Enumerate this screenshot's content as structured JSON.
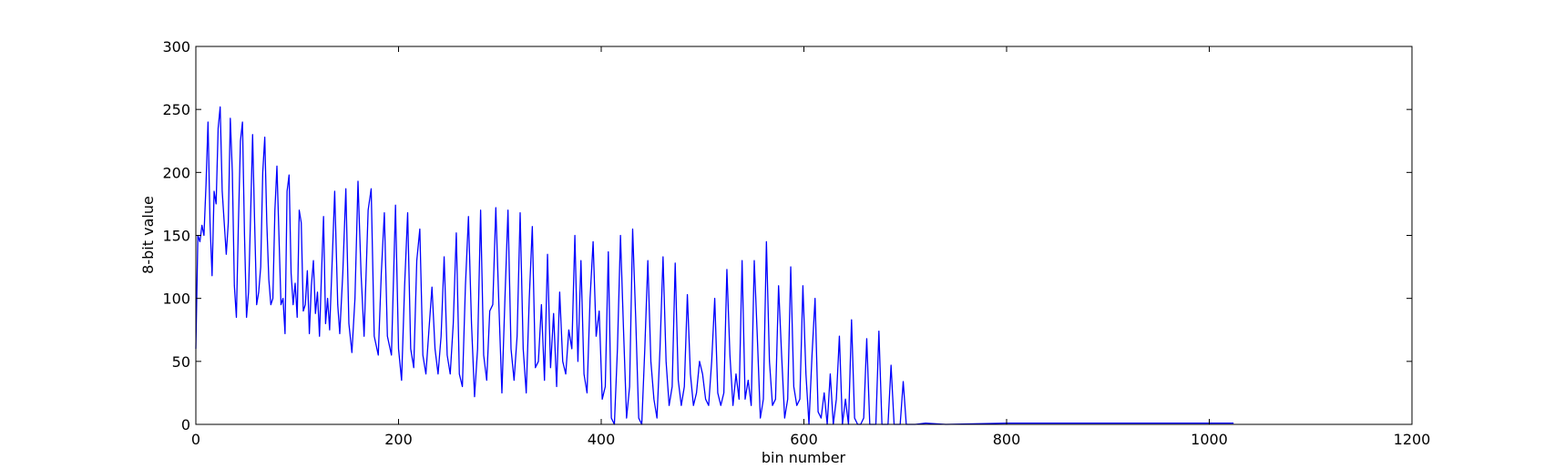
{
  "chart_data": {
    "type": "line",
    "title": "",
    "xlabel": "bin number",
    "ylabel": "8-bit value",
    "xlim": [
      0,
      1200
    ],
    "ylim": [
      0,
      300
    ],
    "x_ticks": [
      0,
      200,
      400,
      600,
      800,
      1000,
      1200
    ],
    "y_ticks": [
      0,
      50,
      100,
      150,
      200,
      250,
      300
    ],
    "grid": false,
    "line_color": "#0000ff",
    "series": [
      {
        "name": "",
        "points": [
          [
            0,
            60
          ],
          [
            2,
            150
          ],
          [
            4,
            145
          ],
          [
            6,
            158
          ],
          [
            8,
            150
          ],
          [
            10,
            190
          ],
          [
            12,
            240
          ],
          [
            14,
            160
          ],
          [
            16,
            118
          ],
          [
            18,
            185
          ],
          [
            20,
            175
          ],
          [
            22,
            235
          ],
          [
            24,
            252
          ],
          [
            26,
            185
          ],
          [
            28,
            160
          ],
          [
            30,
            135
          ],
          [
            32,
            160
          ],
          [
            34,
            243
          ],
          [
            36,
            200
          ],
          [
            38,
            110
          ],
          [
            40,
            85
          ],
          [
            42,
            160
          ],
          [
            44,
            225
          ],
          [
            46,
            240
          ],
          [
            48,
            150
          ],
          [
            50,
            85
          ],
          [
            52,
            105
          ],
          [
            54,
            165
          ],
          [
            56,
            230
          ],
          [
            58,
            160
          ],
          [
            60,
            95
          ],
          [
            62,
            105
          ],
          [
            64,
            125
          ],
          [
            66,
            200
          ],
          [
            68,
            228
          ],
          [
            70,
            160
          ],
          [
            72,
            115
          ],
          [
            74,
            95
          ],
          [
            76,
            100
          ],
          [
            78,
            170
          ],
          [
            80,
            205
          ],
          [
            82,
            150
          ],
          [
            84,
            95
          ],
          [
            86,
            100
          ],
          [
            88,
            72
          ],
          [
            90,
            185
          ],
          [
            92,
            198
          ],
          [
            94,
            120
          ],
          [
            96,
            95
          ],
          [
            98,
            112
          ],
          [
            100,
            85
          ],
          [
            102,
            170
          ],
          [
            104,
            160
          ],
          [
            106,
            90
          ],
          [
            108,
            95
          ],
          [
            110,
            122
          ],
          [
            112,
            72
          ],
          [
            114,
            110
          ],
          [
            116,
            130
          ],
          [
            118,
            88
          ],
          [
            120,
            105
          ],
          [
            122,
            70
          ],
          [
            124,
            120
          ],
          [
            126,
            165
          ],
          [
            128,
            80
          ],
          [
            130,
            100
          ],
          [
            132,
            75
          ],
          [
            135,
            140
          ],
          [
            137,
            185
          ],
          [
            140,
            95
          ],
          [
            142,
            72
          ],
          [
            145,
            120
          ],
          [
            148,
            187
          ],
          [
            151,
            80
          ],
          [
            154,
            57
          ],
          [
            157,
            100
          ],
          [
            160,
            193
          ],
          [
            163,
            120
          ],
          [
            166,
            70
          ],
          [
            170,
            170
          ],
          [
            173,
            187
          ],
          [
            176,
            70
          ],
          [
            180,
            55
          ],
          [
            183,
            120
          ],
          [
            186,
            168
          ],
          [
            189,
            70
          ],
          [
            193,
            55
          ],
          [
            197,
            174
          ],
          [
            200,
            60
          ],
          [
            203,
            35
          ],
          [
            206,
            110
          ],
          [
            209,
            168
          ],
          [
            212,
            60
          ],
          [
            215,
            45
          ],
          [
            218,
            130
          ],
          [
            221,
            155
          ],
          [
            224,
            55
          ],
          [
            227,
            40
          ],
          [
            230,
            75
          ],
          [
            233,
            109
          ],
          [
            236,
            60
          ],
          [
            239,
            40
          ],
          [
            242,
            70
          ],
          [
            245,
            133
          ],
          [
            248,
            55
          ],
          [
            251,
            40
          ],
          [
            254,
            80
          ],
          [
            257,
            152
          ],
          [
            260,
            40
          ],
          [
            263,
            30
          ],
          [
            266,
            110
          ],
          [
            269,
            165
          ],
          [
            272,
            80
          ],
          [
            275,
            22
          ],
          [
            278,
            60
          ],
          [
            281,
            170
          ],
          [
            284,
            55
          ],
          [
            287,
            35
          ],
          [
            290,
            90
          ],
          [
            293,
            95
          ],
          [
            296,
            172
          ],
          [
            299,
            95
          ],
          [
            302,
            25
          ],
          [
            305,
            100
          ],
          [
            308,
            170
          ],
          [
            311,
            60
          ],
          [
            314,
            35
          ],
          [
            317,
            70
          ],
          [
            320,
            168
          ],
          [
            323,
            60
          ],
          [
            326,
            25
          ],
          [
            329,
            100
          ],
          [
            332,
            157
          ],
          [
            335,
            45
          ],
          [
            338,
            50
          ],
          [
            341,
            95
          ],
          [
            344,
            35
          ],
          [
            347,
            135
          ],
          [
            350,
            45
          ],
          [
            353,
            88
          ],
          [
            356,
            30
          ],
          [
            359,
            105
          ],
          [
            362,
            50
          ],
          [
            365,
            40
          ],
          [
            368,
            75
          ],
          [
            371,
            60
          ],
          [
            374,
            150
          ],
          [
            377,
            50
          ],
          [
            380,
            130
          ],
          [
            383,
            40
          ],
          [
            386,
            25
          ],
          [
            389,
            100
          ],
          [
            392,
            145
          ],
          [
            395,
            70
          ],
          [
            398,
            90
          ],
          [
            401,
            20
          ],
          [
            404,
            30
          ],
          [
            407,
            137
          ],
          [
            410,
            5
          ],
          [
            413,
            0
          ],
          [
            416,
            60
          ],
          [
            419,
            150
          ],
          [
            422,
            75
          ],
          [
            425,
            5
          ],
          [
            428,
            30
          ],
          [
            431,
            155
          ],
          [
            434,
            85
          ],
          [
            437,
            5
          ],
          [
            440,
            0
          ],
          [
            443,
            60
          ],
          [
            446,
            130
          ],
          [
            449,
            50
          ],
          [
            452,
            20
          ],
          [
            455,
            5
          ],
          [
            458,
            60
          ],
          [
            461,
            133
          ],
          [
            464,
            50
          ],
          [
            467,
            15
          ],
          [
            470,
            30
          ],
          [
            473,
            128
          ],
          [
            476,
            35
          ],
          [
            479,
            15
          ],
          [
            482,
            30
          ],
          [
            485,
            103
          ],
          [
            488,
            40
          ],
          [
            491,
            15
          ],
          [
            494,
            25
          ],
          [
            497,
            50
          ],
          [
            500,
            40
          ],
          [
            503,
            20
          ],
          [
            506,
            15
          ],
          [
            509,
            50
          ],
          [
            512,
            100
          ],
          [
            515,
            25
          ],
          [
            518,
            15
          ],
          [
            521,
            25
          ],
          [
            524,
            123
          ],
          [
            527,
            55
          ],
          [
            530,
            15
          ],
          [
            533,
            40
          ],
          [
            536,
            20
          ],
          [
            539,
            130
          ],
          [
            542,
            20
          ],
          [
            545,
            35
          ],
          [
            548,
            15
          ],
          [
            551,
            130
          ],
          [
            554,
            70
          ],
          [
            557,
            5
          ],
          [
            560,
            20
          ],
          [
            563,
            145
          ],
          [
            566,
            50
          ],
          [
            569,
            15
          ],
          [
            572,
            20
          ],
          [
            575,
            110
          ],
          [
            578,
            55
          ],
          [
            581,
            5
          ],
          [
            584,
            20
          ],
          [
            587,
            125
          ],
          [
            590,
            30
          ],
          [
            593,
            15
          ],
          [
            596,
            20
          ],
          [
            599,
            110
          ],
          [
            602,
            40
          ],
          [
            605,
            0
          ],
          [
            608,
            55
          ],
          [
            611,
            100
          ],
          [
            614,
            10
          ],
          [
            617,
            5
          ],
          [
            620,
            25
          ],
          [
            623,
            0
          ],
          [
            626,
            40
          ],
          [
            629,
            0
          ],
          [
            632,
            20
          ],
          [
            635,
            70
          ],
          [
            638,
            0
          ],
          [
            641,
            20
          ],
          [
            644,
            0
          ],
          [
            647,
            83
          ],
          [
            650,
            5
          ],
          [
            653,
            0
          ],
          [
            656,
            0
          ],
          [
            659,
            5
          ],
          [
            662,
            68
          ],
          [
            665,
            0
          ],
          [
            668,
            0
          ],
          [
            671,
            0
          ],
          [
            674,
            74
          ],
          [
            677,
            0
          ],
          [
            680,
            0
          ],
          [
            683,
            0
          ],
          [
            686,
            47
          ],
          [
            689,
            0
          ],
          [
            692,
            0
          ],
          [
            695,
            0
          ],
          [
            698,
            34
          ],
          [
            701,
            0
          ],
          [
            704,
            0
          ],
          [
            707,
            0
          ],
          [
            710,
            0
          ],
          [
            720,
            1
          ],
          [
            740,
            0
          ],
          [
            800,
            1
          ],
          [
            900,
            1
          ],
          [
            1000,
            1
          ],
          [
            1024,
            1
          ]
        ]
      }
    ]
  }
}
